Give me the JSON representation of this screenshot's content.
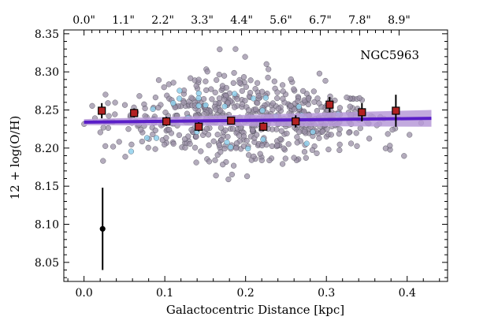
{
  "chart_data": {
    "type": "scatter",
    "annotation": "NGC5963",
    "xlabel": "Galactocentric Distance [kpc]",
    "ylabel": "12 + log(O/H)",
    "xlim": [
      -0.025,
      0.45
    ],
    "ylim": [
      8.025,
      8.355
    ],
    "x_ticks": [
      "0.0",
      "0.1",
      "0.2",
      "0.3",
      "0.4"
    ],
    "x_tick_values": [
      0.0,
      0.1,
      0.2,
      0.3,
      0.4
    ],
    "y_ticks": [
      "8.05",
      "8.10",
      "8.15",
      "8.20",
      "8.25",
      "8.30",
      "8.35"
    ],
    "y_tick_values": [
      8.05,
      8.1,
      8.15,
      8.2,
      8.25,
      8.3,
      8.35
    ],
    "top_axis_ticks": [
      "0.0\"",
      "1.1\"",
      "2.2\"",
      "3.3\"",
      "4.4\"",
      "5.6\"",
      "6.7\"",
      "7.8\"",
      "8.9\""
    ],
    "top_axis_tick_values": [
      0.0,
      0.04875,
      0.0975,
      0.14625,
      0.195,
      0.24375,
      0.2925,
      0.34125,
      0.39
    ],
    "colors": {
      "spaxels": "#9a8fa6",
      "spaxels_highlight": "#8fd0ec",
      "binned_markers": "#b22222",
      "fit_line": "#5a1ec8",
      "fit_band": "#b79ad8",
      "error_bar": "#000000"
    },
    "binned_points": [
      {
        "x": 0.022,
        "y": 8.249,
        "err": 0.01
      },
      {
        "x": 0.062,
        "y": 8.246,
        "err": 0.006
      },
      {
        "x": 0.102,
        "y": 8.235,
        "err": 0.006
      },
      {
        "x": 0.142,
        "y": 8.228,
        "err": 0.006
      },
      {
        "x": 0.182,
        "y": 8.236,
        "err": 0.005
      },
      {
        "x": 0.222,
        "y": 8.228,
        "err": 0.006
      },
      {
        "x": 0.262,
        "y": 8.235,
        "err": 0.008
      },
      {
        "x": 0.304,
        "y": 8.257,
        "err": 0.01
      },
      {
        "x": 0.344,
        "y": 8.247,
        "err": 0.012
      },
      {
        "x": 0.386,
        "y": 8.249,
        "err": 0.021
      }
    ],
    "fit": {
      "x0": 0.0,
      "x1": 0.43,
      "y0": 8.234,
      "y1": 8.239,
      "band_half_width_start": 0.004,
      "band_half_width_end": 0.011
    },
    "typical_error": {
      "x": 0.023,
      "y": 8.094,
      "err": 0.054
    },
    "spaxel_count": 620,
    "highlight_count": 30
  }
}
